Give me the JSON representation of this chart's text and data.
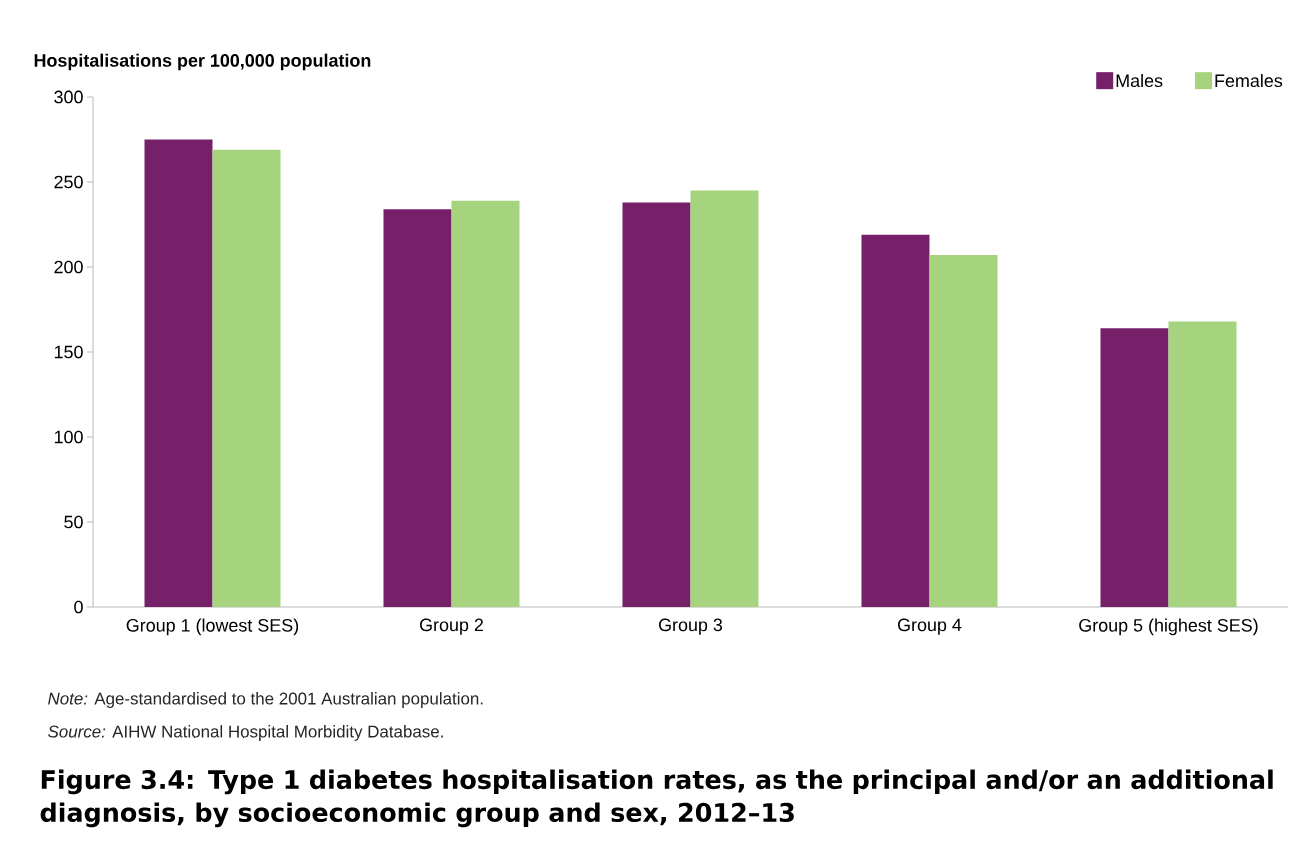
{
  "chart_data": {
    "type": "bar",
    "title": "Figure 3.4: Type 1 diabetes hospitalisation rates, as the principal and/or an additional diagnosis, by socioeconomic group and sex, 2012–13",
    "ylabel": "Hospitalisations per 100,000 population",
    "categories": [
      "Group 1 (lowest SES)",
      "Group 2",
      "Group 3",
      "Group 4",
      "Group 5 (highest SES)"
    ],
    "series": [
      {
        "name": "Males",
        "color": "#76206a",
        "values": [
          275,
          234,
          238,
          219,
          164
        ]
      },
      {
        "name": "Females",
        "color": "#a6d37e",
        "values": [
          269,
          239,
          245,
          207,
          168
        ]
      }
    ],
    "ylim": [
      0,
      300
    ],
    "yticks": [
      0,
      50,
      100,
      150,
      200,
      250,
      300
    ],
    "legend": "top right",
    "annotations": [
      "*Note:* Age-standardised to the 2001 Australian population.",
      "*Source:* AIHW National Hospital Morbidity Database."
    ]
  }
}
